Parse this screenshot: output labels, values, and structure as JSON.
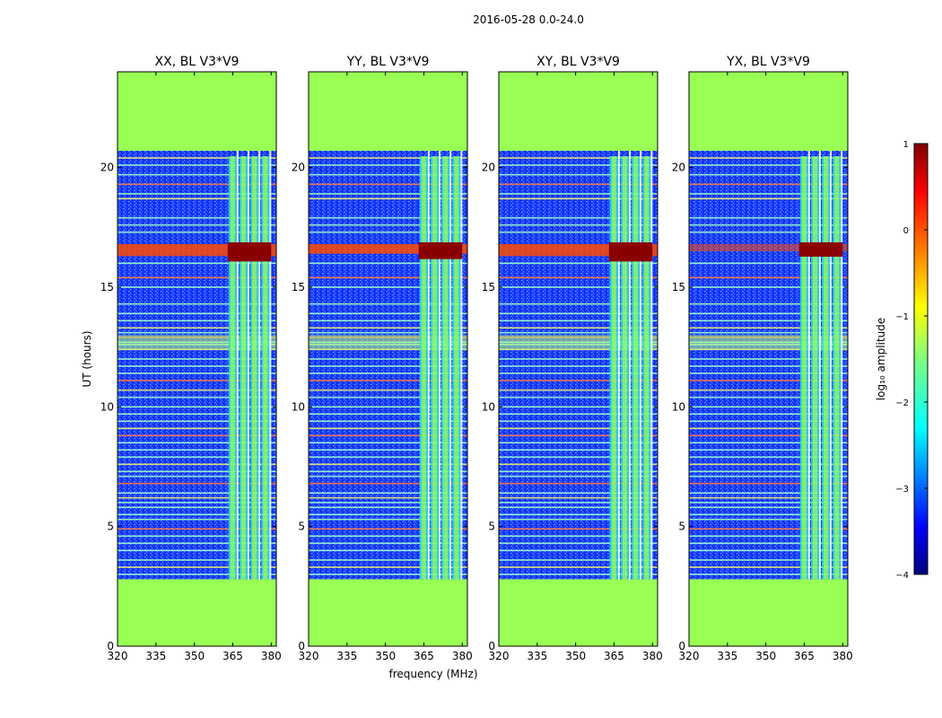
{
  "chart_data": {
    "type": "heatmap",
    "suptitle": "2016-05-28 0.0-24.0",
    "xlabel": "frequency (MHz)",
    "ylabel": "UT (hours)",
    "xlim": [
      320,
      382
    ],
    "ylim": [
      0,
      24
    ],
    "xticks": [
      320,
      335,
      350,
      365,
      380
    ],
    "yticks": [
      0,
      5,
      10,
      15,
      20
    ],
    "masked_value_color": "#99ff55",
    "data_ut_range": [
      2.8,
      20.7
    ],
    "colorbar": {
      "label": "log₁₀ amplitude",
      "range": [
        -4,
        1
      ],
      "ticks": [
        "1",
        "0",
        "−1",
        "−2",
        "−3",
        "−4"
      ],
      "colormap": "jet",
      "stops": [
        "#00007f",
        "#0000ff",
        "#007fff",
        "#00ffff",
        "#7fff7f",
        "#ffff00",
        "#ff7f00",
        "#ff0000",
        "#7f0000"
      ]
    },
    "panels": [
      {
        "title": "XX, BL V3*V9",
        "strong_band": [
          363,
          380
        ],
        "flare_ut": [
          16.3,
          16.8
        ],
        "flare_ext_start": 320
      },
      {
        "title": "YY, BL V3*V9",
        "strong_band": [
          363,
          380
        ],
        "flare_ut": [
          16.4,
          16.8
        ],
        "flare_ext_start": 320
      },
      {
        "title": "XY, BL V3*V9",
        "strong_band": [
          363,
          380
        ],
        "flare_ut": [
          16.3,
          16.8
        ],
        "flare_ext_start": 320
      },
      {
        "title": "YX, BL V3*V9",
        "strong_band": [
          363,
          380
        ],
        "flare_ut": [
          16.5,
          16.8
        ],
        "flare_ext_start": 320
      }
    ],
    "rfi_lines_ut": [
      20.4,
      20.1,
      19.7,
      19.3,
      18.9,
      18.7,
      17.9,
      17.6,
      17.3,
      16.0,
      15.4,
      15.0,
      14.3,
      13.9,
      13.6,
      13.3,
      13.1,
      12.9,
      12.7,
      12.6,
      12.4,
      12.0,
      11.7,
      11.4,
      11.1,
      10.7,
      10.4,
      10.0,
      9.7,
      9.4,
      9.1,
      8.8,
      8.5,
      8.2,
      7.9,
      7.6,
      7.3,
      7.1,
      6.8,
      6.4,
      6.2,
      6.0,
      5.8,
      5.5,
      5.3,
      4.9,
      4.6,
      4.3,
      4.0,
      3.6,
      3.3,
      3.0
    ]
  }
}
